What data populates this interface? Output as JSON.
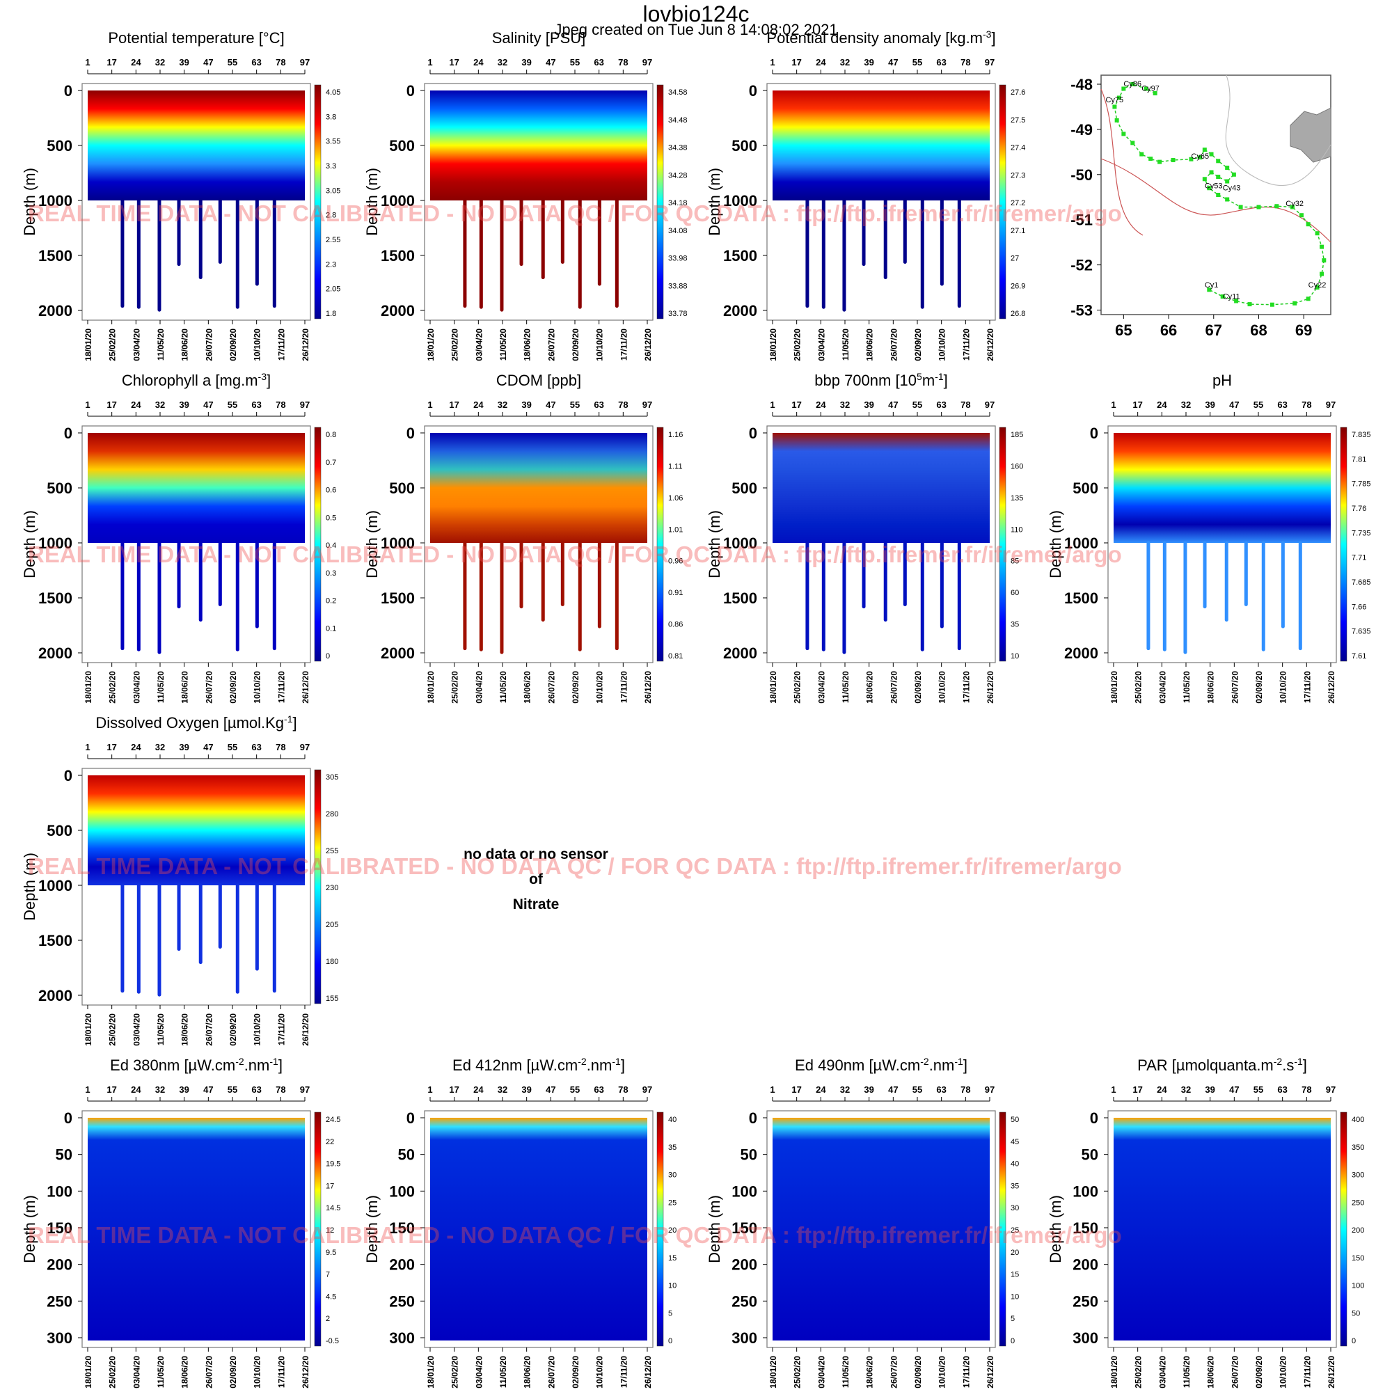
{
  "header": {
    "title": "lovbio124c",
    "subtitle": "Jpeg created on  Tue Jun  8 14:08:02 2021"
  },
  "watermark": "REAL TIME DATA - NOT CALIBRATED - NO DATA QC   /  FOR QC DATA : ftp://ftp.ifremer.fr/ifremer/argo",
  "no_data": {
    "line1": "no data or no sensor",
    "line2": "of",
    "line3": "Nitrate"
  },
  "chart_data": [
    {
      "type": "heatmap",
      "title": "Potential temperature [°C]",
      "ylabel": "Depth (m)",
      "ylim": [
        2000,
        0
      ],
      "yticks": [
        "0",
        "500",
        "1000",
        "1500",
        "2000"
      ],
      "top_ticks": [
        "1",
        "17",
        "24",
        "32",
        "39",
        "47",
        "55",
        "63",
        "78",
        "97"
      ],
      "date_ticks": [
        "18/01/20",
        "25/02/20",
        "03/04/20",
        "11/05/20",
        "18/06/20",
        "26/07/20",
        "02/09/20",
        "10/10/20",
        "17/11/20",
        "26/12/20"
      ],
      "colorbar_ticks": [
        "4.05",
        "3.8",
        "3.55",
        "3.3",
        "3.05",
        "2.8",
        "2.55",
        "2.3",
        "2.05",
        "1.8"
      ],
      "colors": [
        "#8b0000",
        "#ff0000",
        "#ffff00",
        "#00ffff",
        "#1e8fff",
        "#0000c8",
        "#00008b"
      ]
    },
    {
      "type": "heatmap",
      "title": "Salinity [PSU]",
      "ylabel": "Depth (m)",
      "ylim": [
        2000,
        0
      ],
      "yticks": [
        "0",
        "500",
        "1000",
        "1500",
        "2000"
      ],
      "top_ticks": [
        "1",
        "17",
        "24",
        "32",
        "39",
        "47",
        "55",
        "63",
        "78",
        "97"
      ],
      "date_ticks": [
        "18/01/20",
        "25/02/20",
        "03/04/20",
        "11/05/20",
        "18/06/20",
        "26/07/20",
        "02/09/20",
        "10/10/20",
        "17/11/20",
        "26/12/20"
      ],
      "colorbar_ticks": [
        "34.58",
        "34.48",
        "34.38",
        "34.28",
        "34.18",
        "34.08",
        "33.98",
        "33.88",
        "33.78"
      ],
      "colors": [
        "#0000b0",
        "#0060ff",
        "#00ffff",
        "#ffff00",
        "#ff0000",
        "#b00000",
        "#8b0000"
      ]
    },
    {
      "type": "heatmap",
      "title": "Potential density anomaly [kg.m-3]",
      "ylabel": "Depth (m)",
      "ylim": [
        2000,
        0
      ],
      "yticks": [
        "0",
        "500",
        "1000",
        "1500",
        "2000"
      ],
      "top_ticks": [
        "1",
        "17",
        "24",
        "32",
        "39",
        "47",
        "55",
        "63",
        "78",
        "97"
      ],
      "date_ticks": [
        "18/01/20",
        "25/02/20",
        "03/04/20",
        "11/05/20",
        "18/06/20",
        "26/07/20",
        "02/09/20",
        "10/10/20",
        "17/11/20",
        "26/12/20"
      ],
      "colorbar_ticks": [
        "27.6",
        "27.5",
        "27.4",
        "27.3",
        "27.2",
        "27.1",
        "27",
        "26.9",
        "26.8"
      ],
      "colors": [
        "#c00000",
        "#ff3000",
        "#ffff00",
        "#00ffff",
        "#2090ff",
        "#0000c0",
        "#00008b"
      ]
    },
    {
      "type": "scatter",
      "title": "",
      "xticks": [
        "65",
        "66",
        "67",
        "68",
        "69"
      ],
      "yticks": [
        "-48",
        "-49",
        "-50",
        "-51",
        "-52",
        "-53"
      ],
      "xlim": [
        64.5,
        69.6
      ],
      "ylim": [
        -53.1,
        -47.8
      ],
      "labels": [
        {
          "text": "Cy86",
          "x": 65.0,
          "y": -48.05
        },
        {
          "text": "Cy97",
          "x": 65.4,
          "y": -48.15
        },
        {
          "text": "Cy75",
          "x": 64.6,
          "y": -48.4
        },
        {
          "text": "Cy65",
          "x": 66.5,
          "y": -49.65
        },
        {
          "text": "Cy53",
          "x": 66.8,
          "y": -50.3
        },
        {
          "text": "Cy43",
          "x": 67.2,
          "y": -50.35
        },
        {
          "text": "Cy32",
          "x": 68.6,
          "y": -50.7
        },
        {
          "text": "Cy22",
          "x": 69.1,
          "y": -52.5
        },
        {
          "text": "Cy1",
          "x": 66.8,
          "y": -52.5
        },
        {
          "text": "Cy11",
          "x": 67.2,
          "y": -52.75
        }
      ],
      "track": [
        [
          65.7,
          -48.2
        ],
        [
          65.5,
          -48.1
        ],
        [
          65.2,
          -48.0
        ],
        [
          65.0,
          -48.1
        ],
        [
          64.9,
          -48.3
        ],
        [
          64.8,
          -48.5
        ],
        [
          64.85,
          -48.8
        ],
        [
          65.0,
          -49.1
        ],
        [
          65.2,
          -49.3
        ],
        [
          65.4,
          -49.55
        ],
        [
          65.6,
          -49.65
        ],
        [
          65.8,
          -49.72
        ],
        [
          66.1,
          -49.68
        ],
        [
          66.5,
          -49.66
        ],
        [
          66.7,
          -49.62
        ],
        [
          66.8,
          -49.45
        ],
        [
          66.95,
          -49.55
        ],
        [
          67.1,
          -49.7
        ],
        [
          67.3,
          -49.85
        ],
        [
          67.45,
          -50.0
        ],
        [
          67.3,
          -50.15
        ],
        [
          67.1,
          -50.05
        ],
        [
          66.95,
          -49.95
        ],
        [
          66.8,
          -50.1
        ],
        [
          66.9,
          -50.3
        ],
        [
          67.1,
          -50.45
        ],
        [
          67.3,
          -50.55
        ],
        [
          67.6,
          -50.72
        ],
        [
          68.0,
          -50.72
        ],
        [
          68.4,
          -50.7
        ],
        [
          68.75,
          -50.72
        ],
        [
          68.95,
          -50.9
        ],
        [
          69.1,
          -51.1
        ],
        [
          69.3,
          -51.3
        ],
        [
          69.4,
          -51.6
        ],
        [
          69.45,
          -51.9
        ],
        [
          69.4,
          -52.2
        ],
        [
          69.3,
          -52.5
        ],
        [
          69.1,
          -52.75
        ],
        [
          68.8,
          -52.85
        ],
        [
          68.3,
          -52.88
        ],
        [
          67.8,
          -52.87
        ],
        [
          67.5,
          -52.8
        ],
        [
          67.2,
          -52.7
        ],
        [
          66.9,
          -52.55
        ]
      ]
    },
    {
      "type": "heatmap",
      "title": "Chlorophyll a [mg.m-3]",
      "ylabel": "Depth (m)",
      "ylim": [
        2000,
        0
      ],
      "yticks": [
        "0",
        "500",
        "1000",
        "1500",
        "2000"
      ],
      "top_ticks": [
        "1",
        "17",
        "24",
        "32",
        "39",
        "47",
        "55",
        "63",
        "78",
        "97"
      ],
      "date_ticks": [
        "18/01/20",
        "25/02/20",
        "03/04/20",
        "11/05/20",
        "18/06/20",
        "26/07/20",
        "02/09/20",
        "10/10/20",
        "17/11/20",
        "26/12/20"
      ],
      "colorbar_ticks": [
        "0.8",
        "0.7",
        "0.6",
        "0.5",
        "0.4",
        "0.3",
        "0.2",
        "0.1",
        "0"
      ],
      "colors": [
        "#a00000",
        "#e03000",
        "#ffd000",
        "#40ffc0",
        "#0040ff",
        "#0000d0",
        "#0000c0"
      ]
    },
    {
      "type": "heatmap",
      "title": "CDOM  [ppb]",
      "ylabel": "Depth (m)",
      "ylim": [
        2000,
        0
      ],
      "yticks": [
        "0",
        "500",
        "1000",
        "1500",
        "2000"
      ],
      "top_ticks": [
        "1",
        "17",
        "24",
        "32",
        "39",
        "47",
        "55",
        "63",
        "78",
        "97"
      ],
      "date_ticks": [
        "18/01/20",
        "25/02/20",
        "03/04/20",
        "11/05/20",
        "18/06/20",
        "26/07/20",
        "02/09/20",
        "10/10/20",
        "17/11/20",
        "26/12/20"
      ],
      "colorbar_ticks": [
        "1.16",
        "1.11",
        "1.06",
        "1.01",
        "0.96",
        "0.91",
        "0.86",
        "0.81"
      ],
      "colors": [
        "#0000b0",
        "#2060e0",
        "#30c0c0",
        "#ff9000",
        "#ff8000",
        "#d04000",
        "#a01000"
      ]
    },
    {
      "type": "heatmap",
      "title": "bbp 700nm [10^5m^-1]",
      "ylabel": "Depth (m)",
      "ylim": [
        2000,
        0
      ],
      "yticks": [
        "0",
        "500",
        "1000",
        "1500",
        "2000"
      ],
      "top_ticks": [
        "1",
        "17",
        "24",
        "32",
        "39",
        "47",
        "55",
        "63",
        "78",
        "97"
      ],
      "date_ticks": [
        "18/01/20",
        "25/02/20",
        "03/04/20",
        "11/05/20",
        "18/06/20",
        "26/07/20",
        "02/09/20",
        "10/10/20",
        "17/11/20",
        "26/12/20"
      ],
      "colorbar_ticks": [
        "185",
        "160",
        "135",
        "110",
        "85",
        "60",
        "35",
        "10"
      ],
      "colors": [
        "#a01000",
        "#2a5ae8",
        "#2050e0",
        "#1840d8",
        "#1030d0",
        "#0020c8",
        "#0010c0"
      ]
    },
    {
      "type": "heatmap",
      "title": "pH",
      "ylabel": "Depth (m)",
      "ylim": [
        2000,
        0
      ],
      "yticks": [
        "0",
        "500",
        "1000",
        "1500",
        "2000"
      ],
      "top_ticks": [
        "1",
        "17",
        "24",
        "32",
        "39",
        "47",
        "55",
        "63",
        "78",
        "97"
      ],
      "date_ticks": [
        "18/01/20",
        "25/02/20",
        "03/04/20",
        "11/05/20",
        "18/06/20",
        "26/07/20",
        "02/09/20",
        "10/10/20",
        "17/11/20",
        "26/12/20"
      ],
      "colorbar_ticks": [
        "7.835",
        "7.81",
        "7.785",
        "7.76",
        "7.735",
        "7.71",
        "7.685",
        "7.66",
        "7.635",
        "7.61"
      ],
      "colors": [
        "#c00000",
        "#ff4000",
        "#ffff00",
        "#00e0ff",
        "#0040ff",
        "#0000b0",
        "#3090ff"
      ]
    },
    {
      "type": "heatmap",
      "title": "Dissolved Oxygen [µmol.Kg-1]",
      "ylabel": "Depth (m)",
      "ylim": [
        2000,
        0
      ],
      "yticks": [
        "0",
        "500",
        "1000",
        "1500",
        "2000"
      ],
      "top_ticks": [
        "1",
        "17",
        "24",
        "32",
        "39",
        "47",
        "55",
        "63",
        "78",
        "97"
      ],
      "date_ticks": [
        "18/01/20",
        "25/02/20",
        "03/04/20",
        "11/05/20",
        "18/06/20",
        "26/07/20",
        "02/09/20",
        "10/10/20",
        "17/11/20",
        "26/12/20"
      ],
      "colorbar_ticks": [
        "305",
        "280",
        "255",
        "230",
        "205",
        "180",
        "155"
      ],
      "colors": [
        "#c00000",
        "#ff3000",
        "#ffff00",
        "#00ffff",
        "#0050ff",
        "#0000c0",
        "#1030e0"
      ]
    },
    {
      "type": "heatmap",
      "title": "Ed 380nm [µW.cm-2.nm-1]",
      "ylabel": "Depth (m)",
      "ylim": [
        300,
        0
      ],
      "yticks": [
        "0",
        "50",
        "100",
        "150",
        "200",
        "250",
        "300"
      ],
      "top_ticks": [
        "1",
        "17",
        "24",
        "32",
        "39",
        "47",
        "55",
        "63",
        "78",
        "97"
      ],
      "date_ticks": [
        "18/01/20",
        "25/02/20",
        "03/04/20",
        "11/05/20",
        "18/06/20",
        "26/07/20",
        "02/09/20",
        "10/10/20",
        "17/11/20",
        "26/12/20"
      ],
      "colorbar_ticks": [
        "24.5",
        "22",
        "19.5",
        "17",
        "14.5",
        "12",
        "9.5",
        "7",
        "4.5",
        "2",
        "-0.5"
      ],
      "colors": [
        "#0000c0"
      ]
    },
    {
      "type": "heatmap",
      "title": "Ed 412nm [µW.cm-2.nm-1]",
      "ylabel": "Depth (m)",
      "ylim": [
        300,
        0
      ],
      "yticks": [
        "0",
        "50",
        "100",
        "150",
        "200",
        "250",
        "300"
      ],
      "top_ticks": [
        "1",
        "17",
        "24",
        "32",
        "39",
        "47",
        "55",
        "63",
        "78",
        "97"
      ],
      "date_ticks": [
        "18/01/20",
        "25/02/20",
        "03/04/20",
        "11/05/20",
        "18/06/20",
        "26/07/20",
        "02/09/20",
        "10/10/20",
        "17/11/20",
        "26/12/20"
      ],
      "colorbar_ticks": [
        "40",
        "35",
        "30",
        "25",
        "20",
        "15",
        "10",
        "5",
        "0"
      ],
      "colors": [
        "#0000c0"
      ]
    },
    {
      "type": "heatmap",
      "title": "Ed 490nm [µW.cm-2.nm-1]",
      "ylabel": "Depth (m)",
      "ylim": [
        300,
        0
      ],
      "yticks": [
        "0",
        "50",
        "100",
        "150",
        "200",
        "250",
        "300"
      ],
      "top_ticks": [
        "1",
        "17",
        "24",
        "32",
        "39",
        "47",
        "55",
        "63",
        "78",
        "97"
      ],
      "date_ticks": [
        "18/01/20",
        "25/02/20",
        "03/04/20",
        "11/05/20",
        "18/06/20",
        "26/07/20",
        "02/09/20",
        "10/10/20",
        "17/11/20",
        "26/12/20"
      ],
      "colorbar_ticks": [
        "50",
        "45",
        "40",
        "35",
        "30",
        "25",
        "20",
        "15",
        "10",
        "5",
        "0"
      ],
      "colors": [
        "#0000c0"
      ]
    },
    {
      "type": "heatmap",
      "title": "PAR [µmolquanta.m-2.s-1]",
      "ylabel": "Depth (m)",
      "ylim": [
        300,
        0
      ],
      "yticks": [
        "0",
        "50",
        "100",
        "150",
        "200",
        "250",
        "300"
      ],
      "top_ticks": [
        "1",
        "17",
        "24",
        "32",
        "39",
        "47",
        "55",
        "63",
        "78",
        "97"
      ],
      "date_ticks": [
        "18/01/20",
        "25/02/20",
        "03/04/20",
        "11/05/20",
        "18/06/20",
        "26/07/20",
        "02/09/20",
        "10/10/20",
        "17/11/20",
        "26/12/20"
      ],
      "colorbar_ticks": [
        "400",
        "350",
        "300",
        "250",
        "200",
        "150",
        "100",
        "50",
        "0"
      ],
      "colors": [
        "#0000c0"
      ]
    }
  ]
}
